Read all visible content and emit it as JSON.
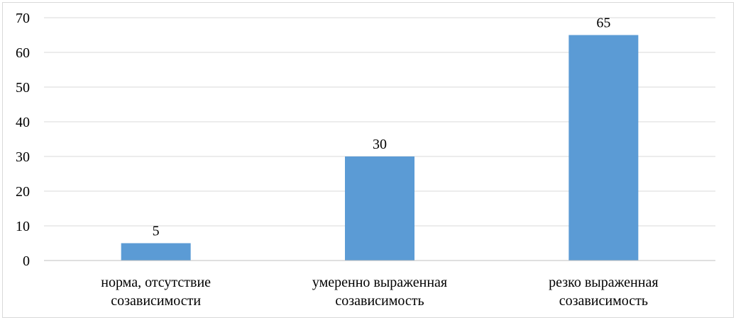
{
  "chart_data": {
    "type": "bar",
    "categories": [
      [
        "норма, отсутствие",
        "созависимости"
      ],
      [
        "умеренно выраженная",
        "созависимость"
      ],
      [
        "резко выраженная",
        "созависимость"
      ]
    ],
    "values": [
      5,
      30,
      65
    ],
    "data_labels": [
      "5",
      "30",
      "65"
    ],
    "ylim": [
      0,
      70
    ],
    "yticks": [
      0,
      10,
      20,
      30,
      40,
      50,
      60,
      70
    ],
    "grid": true,
    "bar_color": "#5b9bd5",
    "grid_color": "#d9d9d9",
    "axis_color": "#bfbfbf"
  }
}
